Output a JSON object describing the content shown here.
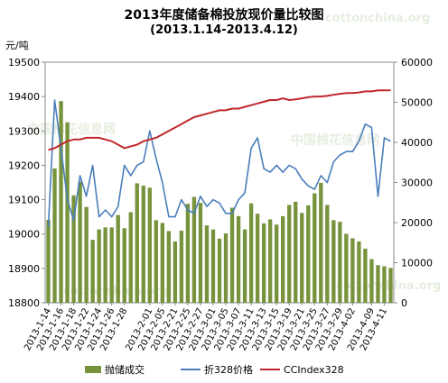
{
  "title": "2013年度储备棉投放现价量比较图",
  "subtitle": "(2013.1.14-2013.4.12)",
  "left_unit": "元/吨",
  "watermarks": [
    "cottonchina.org",
    "中国棉花信息网",
    "中国棉花信息网",
    "cottonchina.org",
    "cottonchina.org"
  ],
  "chart_data": {
    "type": "bar",
    "categories": [
      "2013-1-14",
      "2013-1-15",
      "2013-1-16",
      "2013-1-17",
      "2013-1-18",
      "2013-1-21",
      "2013-1-22",
      "2013-1-23",
      "2013-1-24",
      "2013-1-25",
      "2013-1-26",
      "2013-1-27",
      "2013-1-28",
      "2013-1-29",
      "2013-1-30",
      "2013-1-31",
      "2013-2-01",
      "2013-2-05",
      "2013-2-06",
      "2013-2-07",
      "2013-2-21",
      "2013-2-22",
      "2013-2-25",
      "2013-2-26",
      "2013-2-27",
      "2013-2-28",
      "2013-3-01",
      "2013-3-04",
      "2013-3-05",
      "2013-3-06",
      "2013-3-07",
      "2013-3-08",
      "2013-3-11",
      "2013-3-12",
      "2013-3-13",
      "2013-3-14",
      "2013-3-15",
      "2013-3-18",
      "2013-3-19",
      "2013-3-20",
      "2013-3-21",
      "2013-3-22",
      "2013-3-25",
      "2013-3-26",
      "2013-3-27",
      "2013-3-28",
      "2013-3-29",
      "2013-4-01",
      "2013-4-02",
      "2013-4-03",
      "2013-4-08",
      "2013-4-09",
      "2013-4-10",
      "2013-4-11",
      "2013-4-12"
    ],
    "tick_labels": [
      "2013-1-14",
      "2013-1-16",
      "2013-1-18",
      "2013-1-22",
      "2013-1-24",
      "2013-1-26",
      "2013-1-28",
      "2013-2-01",
      "2013-2-05",
      "2013-2-21",
      "2013-2-25",
      "2013-2-27",
      "2013-3-01",
      "2013-3-05",
      "2013-3-07",
      "2013-3-11",
      "2013-3-13",
      "2013-3-15",
      "2013-3-19",
      "2013-3-21",
      "2013-3-25",
      "2013-3-27",
      "2013-3-29",
      "2013-4-02",
      "2013-4-09",
      "2013-4-11"
    ],
    "tick_indices": [
      0,
      2,
      4,
      6,
      8,
      10,
      12,
      16,
      18,
      20,
      22,
      24,
      26,
      28,
      30,
      32,
      34,
      36,
      38,
      40,
      42,
      44,
      46,
      48,
      51,
      53
    ],
    "yticks_left": [
      "19500",
      "19400",
      "19300",
      "19200",
      "19100",
      "19000",
      "18900",
      "18800"
    ],
    "yticks_right": [
      "60000",
      "50000",
      "40000",
      "30000",
      "20000",
      "10000",
      "0"
    ],
    "ylim_left": [
      18800,
      19500
    ],
    "ylim_right": [
      0,
      60000
    ],
    "legend_position": "bottom",
    "series": [
      {
        "name": "抛储成交",
        "type": "bar",
        "axis": "right",
        "color": "#77933c",
        "values": [
          20700,
          33500,
          50300,
          45000,
          26800,
          30200,
          23900,
          15700,
          18300,
          18800,
          18800,
          21900,
          18600,
          22600,
          29800,
          29200,
          28700,
          20600,
          19900,
          17900,
          15300,
          18000,
          24700,
          26400,
          24900,
          19300,
          18300,
          16000,
          17300,
          23700,
          21600,
          18300,
          24800,
          22200,
          19800,
          20800,
          19500,
          21600,
          24400,
          25200,
          22400,
          24300,
          27300,
          29900,
          24400,
          20600,
          20200,
          17200,
          16100,
          15300,
          13500,
          10900,
          9400,
          9100,
          8700
        ]
      },
      {
        "name": "折328价格",
        "type": "line",
        "axis": "left",
        "color": "#4a7ebb",
        "values": [
          19020,
          19390,
          19250,
          19100,
          19040,
          19170,
          19110,
          19200,
          19050,
          19070,
          19050,
          19080,
          19200,
          19170,
          19200,
          19210,
          19300,
          19220,
          19150,
          19050,
          19050,
          19100,
          19070,
          19060,
          19110,
          19080,
          19100,
          19090,
          19060,
          19060,
          19100,
          19120,
          19250,
          19280,
          19190,
          19180,
          19200,
          19180,
          19200,
          19190,
          19160,
          19140,
          19130,
          19170,
          19150,
          19210,
          19230,
          19240,
          19240,
          19270,
          19320,
          19310,
          19110,
          19280,
          19270
        ]
      },
      {
        "name": "CCIndex328",
        "type": "line",
        "axis": "left",
        "color": "#c0282d",
        "values": [
          19245,
          19250,
          19260,
          19270,
          19275,
          19275,
          19280,
          19280,
          19280,
          19275,
          19270,
          19260,
          19250,
          19255,
          19260,
          19270,
          19275,
          19280,
          19290,
          19300,
          19310,
          19320,
          19330,
          19340,
          19345,
          19350,
          19355,
          19360,
          19360,
          19365,
          19365,
          19370,
          19375,
          19380,
          19385,
          19390,
          19390,
          19395,
          19390,
          19392,
          19395,
          19398,
          19400,
          19400,
          19402,
          19405,
          19408,
          19410,
          19410,
          19412,
          19415,
          19415,
          19418,
          19418,
          19418
        ]
      }
    ]
  }
}
